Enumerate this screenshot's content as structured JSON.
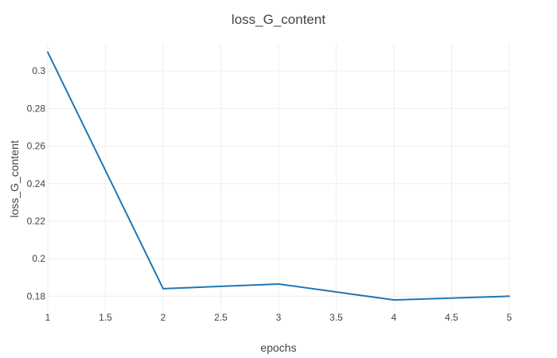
{
  "chart_data": {
    "type": "line",
    "title": "loss_G_content",
    "xlabel": "epochs",
    "ylabel": "loss_G_content",
    "xlim": [
      1,
      5
    ],
    "ylim": [
      0.1725,
      0.3145
    ],
    "x_ticks": [
      "1",
      "1.5",
      "2",
      "2.5",
      "3",
      "3.5",
      "4",
      "4.5",
      "5"
    ],
    "y_ticks": [
      "0.18",
      "0.2",
      "0.22",
      "0.24",
      "0.26",
      "0.28",
      "0.3"
    ],
    "grid": true,
    "legend": "none",
    "line_color": "#1f77b4",
    "series": [
      {
        "x": [
          1,
          2,
          3,
          4,
          5
        ],
        "y": [
          0.31,
          0.184,
          0.1865,
          0.178,
          0.18
        ]
      }
    ]
  }
}
